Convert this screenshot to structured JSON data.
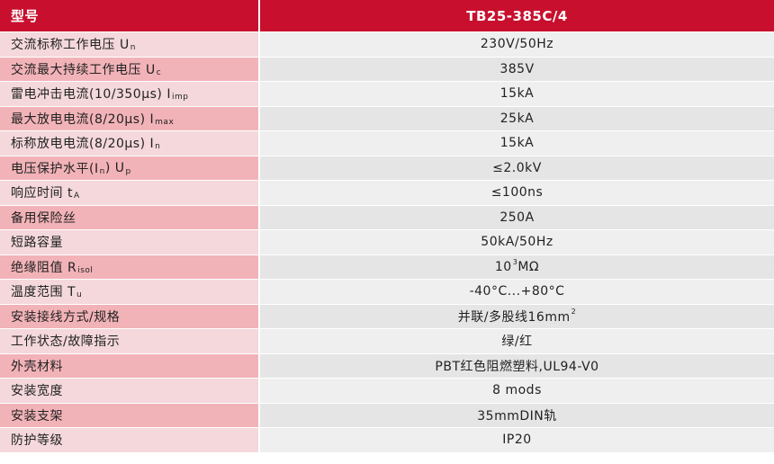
{
  "header": {
    "label": "型号",
    "value": "TB25-385C/4"
  },
  "rows": [
    {
      "label": "交流标称工作电压 U",
      "label_sub": "n",
      "value": "230V/50Hz",
      "value_sup": "",
      "value_tail": ""
    },
    {
      "label": "交流最大持续工作电压 U",
      "label_sub": "c",
      "value": "385V",
      "value_sup": "",
      "value_tail": ""
    },
    {
      "label": "雷电冲击电流(10/350μs) I",
      "label_sub": "imp",
      "value": "15kA",
      "value_sup": "",
      "value_tail": ""
    },
    {
      "label": "最大放电电流(8/20μs) I",
      "label_sub": "max",
      "value": "25kA",
      "value_sup": "",
      "value_tail": ""
    },
    {
      "label": "标称放电电流(8/20μs) I",
      "label_sub": "n",
      "value": "15kA",
      "value_sup": "",
      "value_tail": ""
    },
    {
      "label": "电压保护水平(I",
      "label_sub": "n",
      "label_tail": ") U",
      "label_sub2": "p",
      "value": "≤2.0kV",
      "value_sup": "",
      "value_tail": ""
    },
    {
      "label": "响应时间 t",
      "label_sub": "A",
      "value": "≤100ns",
      "value_sup": "",
      "value_tail": ""
    },
    {
      "label": "备用保险丝",
      "label_sub": "",
      "value": "250A",
      "value_sup": "",
      "value_tail": ""
    },
    {
      "label": "短路容量",
      "label_sub": "",
      "value": "50kA/50Hz",
      "value_sup": "",
      "value_tail": ""
    },
    {
      "label": "绝缘阻值 R",
      "label_sub": "isol",
      "value": "10",
      "value_sup": "3",
      "value_tail": " MΩ"
    },
    {
      "label": "温度范围 T",
      "label_sub": "u",
      "value": "-40°C...+80°C",
      "value_sup": "",
      "value_tail": ""
    },
    {
      "label": "安装接线方式/规格",
      "label_sub": "",
      "value": "并联/多股线16mm",
      "value_sup": "2",
      "value_tail": ""
    },
    {
      "label": "工作状态/故障指示",
      "label_sub": "",
      "value": "绿/红",
      "value_sup": "",
      "value_tail": ""
    },
    {
      "label": "外壳材料",
      "label_sub": "",
      "value": "PBT红色阻燃塑料,UL94-V0",
      "value_sup": "",
      "value_tail": ""
    },
    {
      "label": "安装宽度",
      "label_sub": "",
      "value": "8 mods",
      "value_sup": "",
      "value_tail": ""
    },
    {
      "label": "安装支架",
      "label_sub": "",
      "value": "35mmDIN轨",
      "value_sup": "",
      "value_tail": ""
    },
    {
      "label": "防护等级",
      "label_sub": "",
      "value": "IP20",
      "value_sup": "",
      "value_tail": ""
    }
  ],
  "colors": {
    "header_bg": "#c8102e",
    "label_bg_a": "#f2b3b8",
    "label_bg_b": "#f4d8dc",
    "value_bg_a": "#e5e5e5",
    "value_bg_b": "#efefef"
  }
}
